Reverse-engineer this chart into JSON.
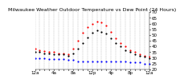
{
  "title": "Milwaukee Weather Outdoor Temperature vs Dew Point (24 Hours)",
  "title_color": "#000000",
  "background_color": "#ffffff",
  "grid_color": "#aaaaaa",
  "hours": [
    0,
    1,
    2,
    3,
    4,
    5,
    6,
    7,
    8,
    9,
    10,
    11,
    12,
    13,
    14,
    15,
    16,
    17,
    18,
    19,
    20,
    21,
    22,
    23,
    24
  ],
  "temp": [
    38,
    37,
    36,
    35,
    35,
    34,
    34,
    33,
    38,
    45,
    52,
    57,
    60,
    62,
    61,
    58,
    53,
    47,
    43,
    40,
    37,
    35,
    33,
    32,
    31
  ],
  "dew": [
    30,
    30,
    30,
    29,
    29,
    29,
    29,
    28,
    28,
    27,
    27,
    27,
    27,
    27,
    27,
    27,
    27,
    27,
    27,
    27,
    26,
    26,
    26,
    25,
    25
  ],
  "out": [
    35,
    35,
    34,
    34,
    33,
    33,
    33,
    32,
    34,
    38,
    43,
    48,
    52,
    54,
    53,
    51,
    47,
    43,
    40,
    37,
    35,
    33,
    32,
    31,
    30
  ],
  "temp_color": "#ff0000",
  "dew_color": "#0000ff",
  "out_color": "#000000",
  "ylim": [
    20,
    70
  ],
  "yticks": [
    20,
    25,
    30,
    35,
    40,
    45,
    50,
    55,
    60,
    65,
    70
  ],
  "xlim": [
    0,
    24
  ],
  "xtick_positions": [
    0,
    1,
    2,
    3,
    4,
    5,
    6,
    7,
    8,
    9,
    10,
    11,
    12,
    13,
    14,
    15,
    16,
    17,
    18,
    19,
    20,
    21,
    22,
    23,
    24
  ],
  "xtick_labels": [
    "12a",
    "",
    "",
    "",
    "4a",
    "",
    "",
    "",
    "8a",
    "",
    "",
    "",
    "12p",
    "",
    "",
    "",
    "4p",
    "",
    "",
    "",
    "8p",
    "",
    "",
    "",
    "12a"
  ],
  "marker_size": 2.5,
  "ylabel_fontsize": 4,
  "xlabel_fontsize": 4,
  "title_fontsize": 4.5
}
